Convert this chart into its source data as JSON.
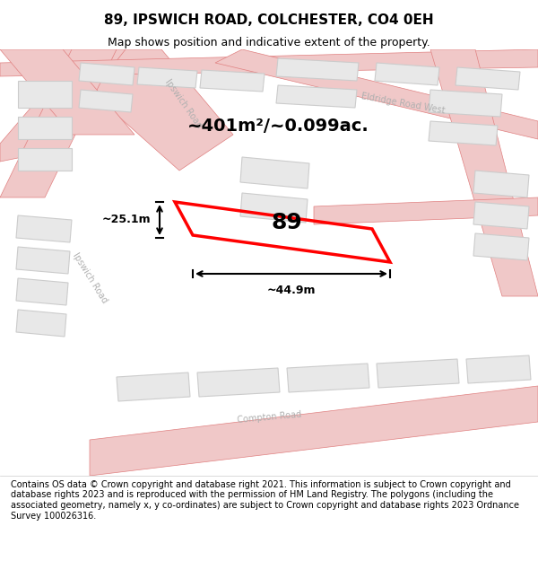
{
  "title": "89, IPSWICH ROAD, COLCHESTER, CO4 0EH",
  "subtitle": "Map shows position and indicative extent of the property.",
  "footer": "Contains OS data © Crown copyright and database right 2021. This information is subject to Crown copyright and database rights 2023 and is reproduced with the permission of HM Land Registry. The polygons (including the associated geometry, namely x, y co-ordinates) are subject to Crown copyright and database rights 2023 Ordnance Survey 100026316.",
  "area_label": "~401m²/~0.099ac.",
  "plot_number": "89",
  "width_label": "~44.9m",
  "height_label": "~25.1m",
  "bg_color": "#ffffff",
  "map_bg": "#f5f5f5",
  "road_color": "#f0c8c8",
  "road_line_color": "#e08080",
  "building_color": "#e8e8e8",
  "building_line_color": "#cccccc",
  "plot_color": "#ff0000",
  "plot_fill": "none",
  "dim_color": "#000000",
  "title_fontsize": 11,
  "subtitle_fontsize": 9,
  "footer_fontsize": 7,
  "road_label_color": "#b0b0b0",
  "figsize": [
    6.0,
    6.25
  ],
  "dpi": 100
}
